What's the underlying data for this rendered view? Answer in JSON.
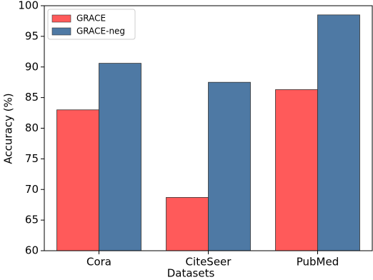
{
  "chart_data": {
    "type": "bar",
    "categories": [
      "Cora",
      "CiteSeer",
      "PubMed"
    ],
    "series": [
      {
        "name": "GRACE",
        "color": "#ff5a5a",
        "values": [
          83.0,
          68.7,
          86.3
        ]
      },
      {
        "name": "GRACE-neg",
        "color": "#4e79a4",
        "values": [
          90.6,
          87.5,
          98.5
        ]
      }
    ],
    "x_label": "Datasets",
    "y_label": "Accuracy (%)",
    "ylim": [
      60,
      100
    ],
    "yticks": [
      60,
      65,
      70,
      75,
      80,
      85,
      90,
      95,
      100
    ],
    "grid": false,
    "legend": "upper left"
  }
}
